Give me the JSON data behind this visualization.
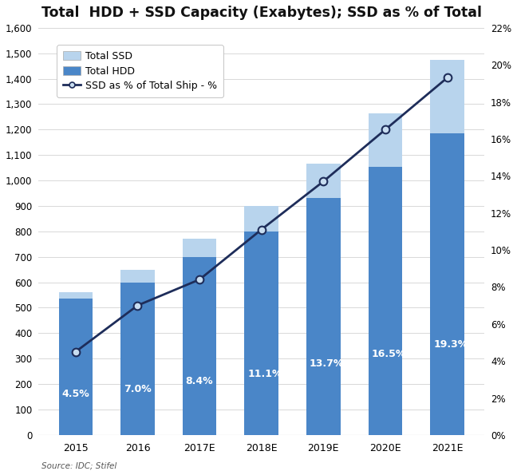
{
  "title": "Total  HDD + SSD Capacity (Exabytes); SSD as % of Total",
  "categories": [
    "2015",
    "2016",
    "2017E",
    "2018E",
    "2019E",
    "2020E",
    "2021E"
  ],
  "hdd_values": [
    535,
    600,
    700,
    800,
    930,
    1055,
    1185
  ],
  "total_values": [
    560,
    650,
    770,
    900,
    1065,
    1265,
    1475
  ],
  "ssd_pct": [
    4.5,
    7.0,
    8.4,
    11.1,
    13.7,
    16.5,
    19.3
  ],
  "ssd_pct_labels": [
    "4.5%",
    "7.0%",
    "8.4%",
    "11.1%",
    "13.7%",
    "16.5%",
    "19.3%"
  ],
  "hdd_color": "#4a86c8",
  "ssd_color": "#b8d4ed",
  "line_color": "#1e2d5a",
  "marker_facecolor": "#c8ddf0",
  "marker_edgecolor": "#1e2d5a",
  "ylim_left": [
    0,
    1600
  ],
  "ylim_right": [
    0,
    22
  ],
  "yticks_left": [
    0,
    100,
    200,
    300,
    400,
    500,
    600,
    700,
    800,
    900,
    1000,
    1100,
    1200,
    1300,
    1400,
    1500,
    1600
  ],
  "yticks_right_vals": [
    0,
    2,
    4,
    6,
    8,
    10,
    12,
    14,
    16,
    18,
    20,
    22
  ],
  "yticks_right_labels": [
    "0%",
    "2%",
    "4%",
    "6%",
    "8%",
    "10%",
    "12%",
    "14%",
    "16%",
    "18%",
    "20%",
    "22%"
  ],
  "grid_color": "#d8d8d8",
  "background_color": "#ffffff",
  "source_text": "Source: IDC; Stifel",
  "legend_labels": [
    "Total SSD",
    "Total HDD",
    "SSD as % of Total Ship - %"
  ],
  "title_fontsize": 12.5,
  "label_fontsize": 9,
  "tick_fontsize": 8.5,
  "source_fontsize": 7.5,
  "pct_label_color": "#ffffff",
  "pct_label_fontsize": 9
}
